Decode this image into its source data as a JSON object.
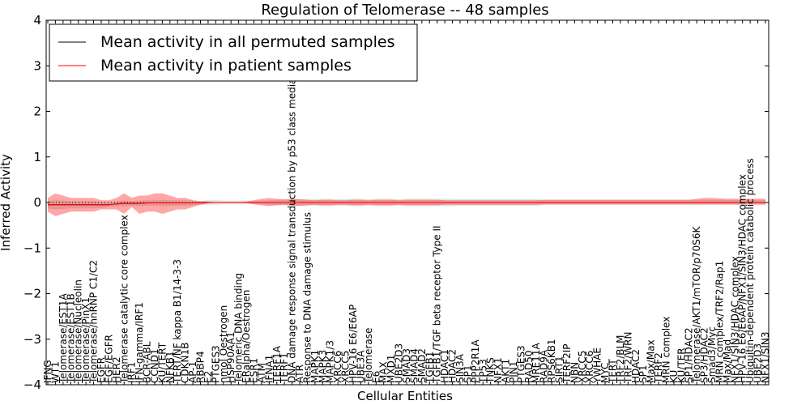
{
  "chart_data": {
    "type": "line",
    "title": "Regulation of Telomerase -- 48 samples",
    "xlabel": "Cellular Entities",
    "ylabel": "Inferred Activity",
    "ylim": [
      -4,
      4
    ],
    "yticks": [
      -4,
      -3,
      -2,
      -1,
      0,
      1,
      2,
      3,
      4
    ],
    "ytick_labels": [
      "−4",
      "−3",
      "−2",
      "−1",
      "0",
      "1",
      "2",
      "3",
      "4"
    ],
    "legend": {
      "placement": "top-left",
      "entries": [
        {
          "label": "Mean activity in all permuted samples",
          "color": "#000000"
        },
        {
          "label": "Mean activity in patient samples",
          "color": "#ff0000"
        }
      ]
    },
    "categories": [
      "IFNG",
      "WT1",
      "Telomerase/EST1A",
      "Telomerase/EST1B",
      "Telomerase/Nucleolin",
      "Telomerase/PinX1",
      "Telomerase/hnRNP C1/C2",
      "EGFR",
      "EGF/EGFR",
      "HER2",
      "Telomerase catalytic core complex",
      "IRF1",
      "IFN-gamma/IRF1",
      "BCR-ABL",
      "CCND1",
      "KU/TERT",
      "NFKB1",
      "TERT/NF kappa B1/14-3-3",
      "CDKN1B",
      "AP-1",
      "RBBP4",
      "E2",
      "PTGES3",
      "nmol Oestrogen",
      "HSP90AA1",
      "Telomeric DNA binding",
      "ERalpha/Oestrogen",
      "ESR1",
      "ATM",
      "IFNA1",
      "TERF1A",
      "TERF1",
      "DNA damage response signal transduction by p53 class mediator",
      "ATR",
      "Response to DNA damage stimulus",
      "MAPK1",
      "MAPK3",
      "MAPK1/3",
      "XRCC6",
      "XRCC5",
      "HPV-16 E6/E6AP",
      "UBE3A",
      "Telomerase",
      "E6",
      "MAX",
      "MXD1",
      "UBE2D3",
      "SMAD3",
      "SMAD4",
      "SMAD2",
      "TGFB1",
      "TGFB1/TGF beta receptor Type II",
      "HDAC1",
      "HDAC2",
      "SIN3A",
      "SP1",
      "PPP2R1A",
      "TP53",
      "TNKS",
      "NFX1",
      "AKT1",
      "PIN1",
      "PTGES3",
      "RAD50",
      "MRE11A",
      "RAD9A",
      "RPS6KB1",
      "SIRT1",
      "TERF2IP",
      "NBN",
      "XRCC5",
      "XRCC6",
      "YWHAE",
      "MYC",
      "TERT",
      "TRF2/BLM",
      "TRF2/WRN",
      "HDAC2",
      "SP1",
      "Max/Max",
      "TERF2",
      "MRN complex",
      "KU",
      "KU/TER",
      "SP1/HDAC2",
      "Telomerase/AKT1/mTOR/p70S6K",
      "SP3/HDAC2",
      "Smad3/Myc",
      "MRN complex/TRF2/Rap1",
      "Max/Mad",
      "NFX1/SIN3/HDAC complex",
      "HPV-16 E6/E6AP/NFX1/SIN3/HDAC complex",
      "Ubiquitin-dependent protein catabolic process",
      "UBE2D3",
      "NFX1/SIN3"
    ],
    "series": [
      {
        "name": "Mean activity in all permuted samples",
        "color": "#000000",
        "values": [
          -0.05,
          -0.05,
          -0.05,
          -0.05,
          -0.05,
          -0.05,
          -0.05,
          -0.05,
          -0.05,
          -0.03,
          -0.02,
          -0.02,
          -0.02,
          -0.01,
          -0.01,
          -0.01,
          -0.01,
          -0.01,
          -0.01,
          -0.01,
          -0.01,
          0.0,
          0.0,
          0.0,
          0.0,
          0.0,
          0.0,
          0.0,
          0.0,
          0.0,
          0.0,
          0.0,
          0.0,
          0.0,
          0.0,
          0.0,
          0.0,
          0.0,
          0.0,
          0.0,
          0.0,
          0.0,
          0.0,
          0.0,
          0.0,
          0.0,
          0.0,
          0.0,
          0.0,
          0.0,
          0.0,
          0.0,
          0.0,
          0.0,
          0.0,
          0.0,
          0.0,
          0.0,
          0.0,
          0.0,
          0.0,
          0.0,
          0.0,
          0.0,
          0.0,
          0.0,
          0.0,
          0.0,
          0.0,
          0.0,
          0.0,
          0.0,
          0.0,
          0.0,
          0.0,
          0.0,
          0.0,
          0.0,
          0.0,
          0.0,
          0.0,
          0.0,
          0.0,
          0.0,
          0.0,
          0.0,
          0.0,
          0.0,
          0.0,
          0.0,
          0.0,
          0.0,
          0.0,
          0.0,
          0.0
        ],
        "lower": [
          -0.13,
          -0.15,
          -0.14,
          -0.13,
          -0.13,
          -0.13,
          -0.13,
          -0.12,
          -0.1,
          -0.09,
          -0.08,
          -0.07,
          -0.08,
          -0.07,
          -0.07,
          -0.08,
          -0.07,
          -0.07,
          -0.07,
          -0.06,
          -0.05,
          -0.05,
          -0.05,
          -0.04,
          -0.04,
          -0.04,
          -0.04,
          -0.04,
          -0.04,
          -0.05,
          -0.06,
          -0.06,
          -0.07,
          -0.07,
          -0.07,
          -0.07,
          -0.08,
          -0.08,
          -0.07,
          -0.07,
          -0.08,
          -0.08,
          -0.07,
          -0.08,
          -0.08,
          -0.08,
          -0.07,
          -0.08,
          -0.08,
          -0.08,
          -0.08,
          -0.08,
          -0.08,
          -0.08,
          -0.07,
          -0.07,
          -0.07,
          -0.07,
          -0.07,
          -0.07,
          -0.07,
          -0.07,
          -0.07,
          -0.07,
          -0.07,
          -0.06,
          -0.06,
          -0.06,
          -0.06,
          -0.06,
          -0.06,
          -0.06,
          -0.06,
          -0.06,
          -0.06,
          -0.06,
          -0.06,
          -0.06,
          -0.06,
          -0.06,
          -0.06,
          -0.06,
          -0.06,
          -0.06,
          -0.06,
          -0.06,
          -0.06,
          -0.06,
          -0.06,
          -0.06,
          -0.06,
          -0.06,
          -0.06,
          -0.06,
          -0.06
        ],
        "upper": [
          0.03,
          0.05,
          0.04,
          0.03,
          0.03,
          0.03,
          0.03,
          0.02,
          0.0,
          0.03,
          0.04,
          0.03,
          0.04,
          0.05,
          0.05,
          0.06,
          0.05,
          0.05,
          0.05,
          0.04,
          0.03,
          0.05,
          0.05,
          0.04,
          0.04,
          0.04,
          0.04,
          0.04,
          0.04,
          0.05,
          0.06,
          0.06,
          0.07,
          0.07,
          0.07,
          0.07,
          0.08,
          0.08,
          0.07,
          0.07,
          0.08,
          0.08,
          0.07,
          0.08,
          0.08,
          0.08,
          0.07,
          0.08,
          0.08,
          0.08,
          0.08,
          0.08,
          0.08,
          0.08,
          0.07,
          0.07,
          0.07,
          0.07,
          0.07,
          0.07,
          0.07,
          0.07,
          0.07,
          0.07,
          0.07,
          0.06,
          0.06,
          0.06,
          0.06,
          0.06,
          0.06,
          0.06,
          0.06,
          0.06,
          0.06,
          0.06,
          0.06,
          0.06,
          0.06,
          0.06,
          0.06,
          0.06,
          0.06,
          0.06,
          0.06,
          0.06,
          0.06,
          0.06,
          0.06,
          0.06,
          0.06,
          0.06,
          0.06,
          0.06,
          0.06
        ]
      },
      {
        "name": "Mean activity in patient samples",
        "color": "#ff0000",
        "values": [
          -0.05,
          -0.05,
          -0.05,
          -0.05,
          -0.05,
          -0.05,
          -0.05,
          -0.05,
          -0.05,
          -0.03,
          -0.02,
          -0.02,
          -0.02,
          -0.01,
          -0.01,
          -0.01,
          -0.01,
          -0.01,
          -0.01,
          -0.01,
          -0.01,
          0.0,
          0.0,
          0.0,
          0.0,
          0.0,
          0.0,
          0.0,
          0.0,
          0.0,
          0.0,
          0.0,
          0.0,
          0.0,
          0.0,
          0.0,
          0.0,
          0.0,
          0.0,
          0.0,
          0.0,
          0.0,
          0.0,
          0.0,
          0.0,
          0.0,
          0.0,
          0.0,
          0.0,
          0.0,
          0.0,
          0.0,
          0.0,
          0.0,
          0.0,
          0.0,
          0.0,
          0.0,
          0.0,
          0.0,
          0.0,
          0.0,
          0.0,
          0.0,
          0.0,
          0.0,
          0.0,
          0.0,
          0.0,
          0.0,
          0.0,
          0.0,
          0.0,
          0.0,
          0.0,
          0.0,
          0.0,
          0.0,
          0.0,
          0.0,
          0.0,
          0.0,
          0.0,
          0.0,
          0.0,
          0.0,
          0.0,
          0.0,
          0.0,
          0.0,
          0.0,
          0.0,
          0.0,
          0.0,
          0.0
        ],
        "lower": [
          -0.2,
          -0.3,
          -0.25,
          -0.2,
          -0.2,
          -0.2,
          -0.2,
          -0.15,
          -0.15,
          -0.15,
          -0.25,
          -0.1,
          -0.25,
          -0.2,
          -0.2,
          -0.25,
          -0.2,
          -0.15,
          -0.15,
          -0.1,
          -0.05,
          -0.02,
          -0.01,
          -0.01,
          -0.01,
          -0.01,
          -0.01,
          -0.04,
          -0.06,
          -0.08,
          -0.06,
          -0.05,
          -0.07,
          -0.07,
          -0.06,
          -0.05,
          -0.06,
          -0.06,
          -0.05,
          -0.05,
          -0.06,
          -0.06,
          -0.05,
          -0.06,
          -0.06,
          -0.06,
          -0.05,
          -0.06,
          -0.06,
          -0.06,
          -0.06,
          -0.06,
          -0.05,
          -0.05,
          -0.05,
          -0.05,
          -0.05,
          -0.05,
          -0.05,
          -0.05,
          -0.05,
          -0.05,
          -0.05,
          -0.05,
          -0.05,
          -0.04,
          -0.04,
          -0.04,
          -0.04,
          -0.04,
          -0.04,
          -0.04,
          -0.04,
          -0.04,
          -0.04,
          -0.04,
          -0.04,
          -0.04,
          -0.04,
          -0.04,
          -0.04,
          -0.04,
          -0.04,
          -0.04,
          -0.04,
          -0.04,
          -0.04,
          -0.04,
          -0.04,
          -0.04,
          -0.04,
          -0.04,
          -0.04,
          -0.04,
          -0.04
        ],
        "upper": [
          0.1,
          0.2,
          0.15,
          0.1,
          0.1,
          0.1,
          0.1,
          0.05,
          0.05,
          0.1,
          0.2,
          0.1,
          0.15,
          0.15,
          0.2,
          0.2,
          0.15,
          0.1,
          0.1,
          0.05,
          0.03,
          0.02,
          0.01,
          0.01,
          0.01,
          0.01,
          0.02,
          0.05,
          0.08,
          0.1,
          0.08,
          0.07,
          0.08,
          0.07,
          0.06,
          0.05,
          0.06,
          0.06,
          0.05,
          0.05,
          0.06,
          0.06,
          0.05,
          0.06,
          0.06,
          0.06,
          0.05,
          0.06,
          0.06,
          0.06,
          0.06,
          0.06,
          0.05,
          0.05,
          0.05,
          0.05,
          0.05,
          0.05,
          0.05,
          0.05,
          0.05,
          0.05,
          0.05,
          0.05,
          0.05,
          0.06,
          0.06,
          0.06,
          0.06,
          0.06,
          0.06,
          0.06,
          0.06,
          0.06,
          0.06,
          0.06,
          0.06,
          0.06,
          0.06,
          0.06,
          0.06,
          0.06,
          0.06,
          0.06,
          0.06,
          0.08,
          0.1,
          0.1,
          0.09,
          0.08,
          0.08,
          0.08,
          0.08,
          0.08,
          0.08
        ]
      }
    ],
    "zero_line": {
      "value": 0,
      "style": "dotted"
    }
  }
}
